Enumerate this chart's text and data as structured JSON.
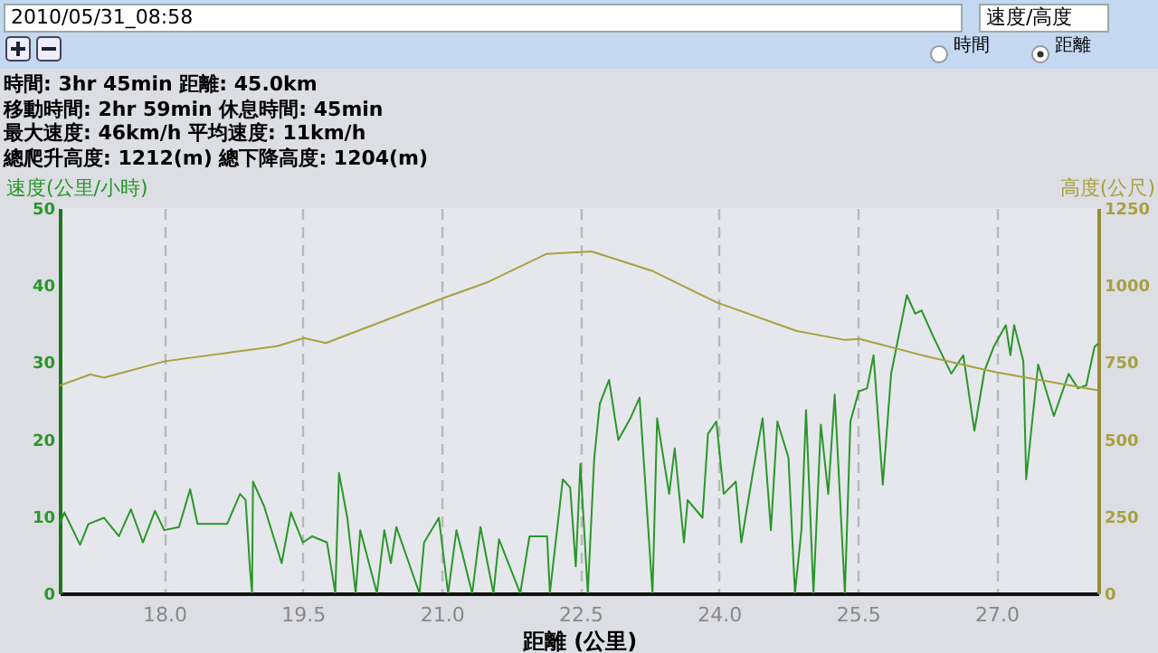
{
  "chart_data": {
    "type": "line",
    "xlabel": "距離 (公里)",
    "ylabel": "速度(公里/小時)",
    "y2label": "高度(公尺)",
    "annotations": [
      "2010/05/31_08:58",
      "速度/高度",
      "時間",
      "距離",
      "時間: 3hr 45min  距離: 45.0km",
      "移動時間: 2hr 59min  休息時間: 45min",
      "最大速度: 46km/h  平均速度: 11km/h",
      "總爬升高度: 1212(m)  總下降高度: 1204(m)"
    ],
    "xlim": [
      16.87,
      28.1
    ],
    "xticks": [
      {
        "value": 18,
        "label": "18.0"
      },
      {
        "value": 19.5,
        "label": "19.5"
      },
      {
        "value": 21,
        "label": "21.0"
      },
      {
        "value": 22.5,
        "label": "22.5"
      },
      {
        "value": 24,
        "label": "24.0"
      },
      {
        "value": 25.5,
        "label": "25.5"
      },
      {
        "value": 27,
        "label": "27.0"
      }
    ],
    "ylim": [
      0,
      50
    ],
    "yticks": [
      0,
      10,
      20,
      30,
      40,
      50
    ],
    "y2lim": [
      0,
      1250
    ],
    "y2ticks": [
      0,
      250,
      500,
      750,
      1000,
      1250
    ],
    "grid": "x",
    "series": [
      {
        "color": "#2a962a",
        "x": [
          16.87,
          16.92,
          17.09,
          17.18,
          17.35,
          17.51,
          17.64,
          17.77,
          17.9,
          18.0,
          18.16,
          18.28,
          18.36,
          18.68,
          18.82,
          18.88,
          18.93,
          18.95,
          18.96,
          19.08,
          19.27,
          19.37,
          19.5,
          19.6,
          19.76,
          19.85,
          19.89,
          19.98,
          20.07,
          20.12,
          20.3,
          20.38,
          20.45,
          20.51,
          20.76,
          20.81,
          20.97,
          21.07,
          21.16,
          21.33,
          21.42,
          21.56,
          21.62,
          21.85,
          21.95,
          22.14,
          22.17,
          22.31,
          22.39,
          22.45,
          22.5,
          22.58,
          22.65,
          22.71,
          22.81,
          22.91,
          23.04,
          23.14,
          23.28,
          23.33,
          23.46,
          23.52,
          23.62,
          23.66,
          23.82,
          23.88,
          23.97,
          24.05,
          24.18,
          24.24,
          24.37,
          24.47,
          24.56,
          24.63,
          24.75,
          24.82,
          24.89,
          24.94,
          25.02,
          25.1,
          25.18,
          25.25,
          25.36,
          25.42,
          25.51,
          25.6,
          25.67,
          25.77,
          25.86,
          26.03,
          26.12,
          26.19,
          26.32,
          26.51,
          26.64,
          26.76,
          26.87,
          26.97,
          27.1,
          27.15,
          27.19,
          27.29,
          27.32,
          27.45,
          27.62,
          27.78,
          27.88,
          27.97,
          28.06,
          28.1
        ],
        "values": [
          9.0,
          10.5,
          6.3,
          9.0,
          9.8,
          7.4,
          10.9,
          6.6,
          10.7,
          8.2,
          8.6,
          13.5,
          9.0,
          9.0,
          12.9,
          12.1,
          2.7,
          0,
          14.5,
          11.3,
          3.9,
          10.5,
          6.6,
          7.4,
          6.6,
          0,
          15.6,
          9.8,
          0,
          8.2,
          0,
          8.2,
          3.9,
          8.6,
          0,
          6.6,
          9.8,
          0,
          8.2,
          0,
          8.6,
          0,
          7.0,
          0,
          7.4,
          7.4,
          0,
          14.8,
          13.7,
          3.5,
          16.8,
          0,
          17.6,
          24.6,
          27.7,
          19.9,
          22.7,
          25.4,
          0,
          22.7,
          12.9,
          18.8,
          6.6,
          12.1,
          9.8,
          20.7,
          22.3,
          12.9,
          14.5,
          6.6,
          16.0,
          22.7,
          8.2,
          22.3,
          17.6,
          0,
          8.2,
          23.8,
          0,
          21.9,
          12.9,
          25.8,
          0,
          22.3,
          26.2,
          26.6,
          30.9,
          14.1,
          28.5,
          38.7,
          36.3,
          36.7,
          33.2,
          28.5,
          30.9,
          21.1,
          28.9,
          32.0,
          34.8,
          30.9,
          34.8,
          30.1,
          14.8,
          29.7,
          23.0,
          28.5,
          26.6,
          27.0,
          32.0,
          32.4
        ]
      },
      {
        "color": "#a8a040",
        "axis": "y2",
        "x": [
          16.87,
          17.2,
          17.35,
          18.01,
          19.22,
          19.51,
          19.75,
          21.02,
          21.51,
          22.13,
          22.62,
          23.27,
          23.98,
          24.84,
          25.36,
          25.52,
          26.2,
          26.98,
          28.09
        ],
        "values": [
          674,
          710,
          700,
          753,
          802,
          828,
          812,
          958,
          1011,
          1101,
          1109,
          1047,
          943,
          851,
          822,
          825,
          772,
          718,
          659
        ]
      }
    ]
  }
}
